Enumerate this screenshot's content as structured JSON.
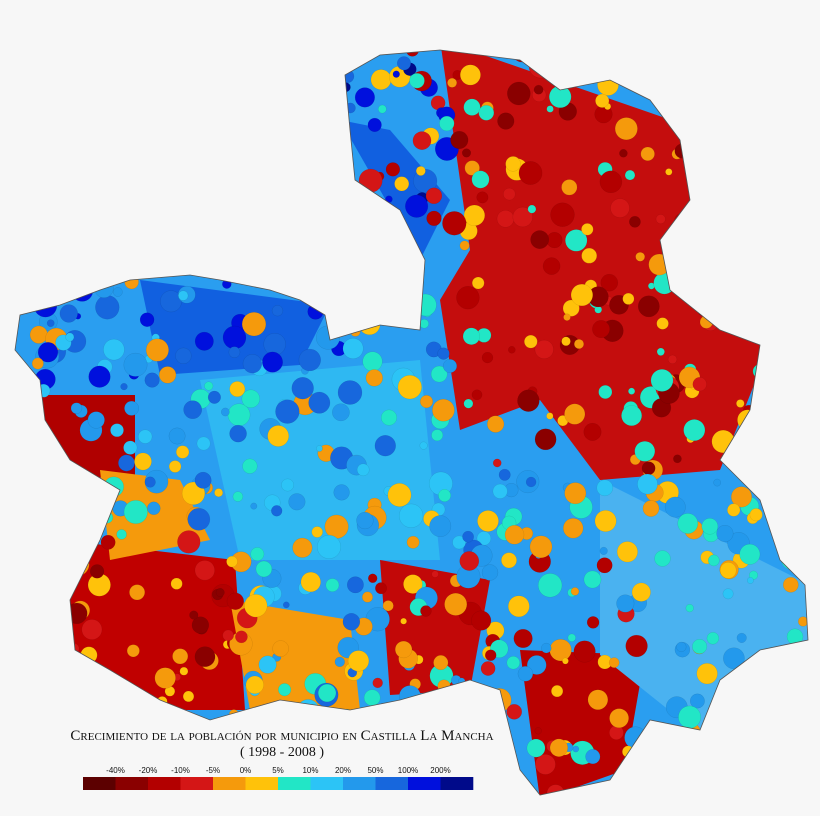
{
  "map": {
    "title": "Crecimiento de la población por municipio en Castilla La Mancha",
    "subtitle": "( 1998 - 2008 )",
    "legend": {
      "colors": [
        "#5c0000",
        "#8a0000",
        "#b30000",
        "#d41616",
        "#f59a0c",
        "#ffc20a",
        "#22e6c6",
        "#2cc4f6",
        "#2399ec",
        "#1767dd",
        "#0010dd",
        "#000a8a"
      ],
      "labels": [
        "-40%",
        "-20%",
        "-10%",
        "-5%",
        "0%",
        "5%",
        "10%",
        "20%",
        "50%",
        "100%",
        "200%"
      ]
    }
  }
}
